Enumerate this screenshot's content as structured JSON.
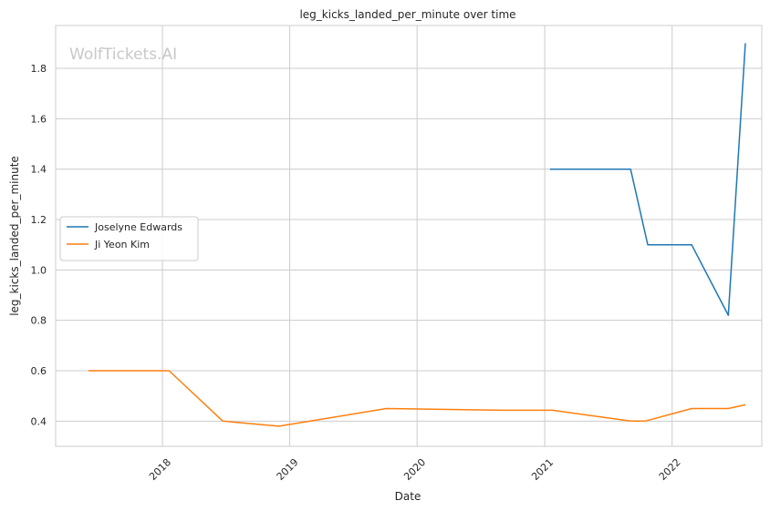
{
  "chart_data": {
    "type": "line",
    "title": "leg_kicks_landed_per_minute over time",
    "xlabel": "Date",
    "ylabel": "leg_kicks_landed_per_minute",
    "watermark": "WolfTickets.AI",
    "x_ticks": [
      "2018",
      "2019",
      "2020",
      "2021",
      "2022"
    ],
    "y_ticks": [
      "0.4",
      "0.6",
      "0.8",
      "1.0",
      "1.2",
      "1.4",
      "1.6",
      "1.8"
    ],
    "xlim": [
      "2017-03-01",
      "2022-09-15"
    ],
    "ylim": [
      0.3,
      1.97
    ],
    "grid": true,
    "legend_position": "center-left",
    "series": [
      {
        "name": "Joselyne Edwards",
        "color": "#1f77b4",
        "points": [
          {
            "x": "2021-01-16",
            "y": 1.4
          },
          {
            "x": "2021-09-04",
            "y": 1.4
          },
          {
            "x": "2021-10-23",
            "y": 1.1
          },
          {
            "x": "2022-02-26",
            "y": 1.1
          },
          {
            "x": "2022-06-11",
            "y": 0.82
          },
          {
            "x": "2022-07-30",
            "y": 1.9
          }
        ]
      },
      {
        "name": "Ji Yeon Kim",
        "color": "#ff7f0e",
        "points": [
          {
            "x": "2017-06-03",
            "y": 0.6
          },
          {
            "x": "2018-01-20",
            "y": 0.6
          },
          {
            "x": "2018-06-23",
            "y": 0.4
          },
          {
            "x": "2018-12-01",
            "y": 0.38
          },
          {
            "x": "2019-10-05",
            "y": 0.45
          },
          {
            "x": "2020-09-05",
            "y": 0.443
          },
          {
            "x": "2021-01-23",
            "y": 0.443
          },
          {
            "x": "2021-09-04",
            "y": 0.4
          },
          {
            "x": "2021-10-16",
            "y": 0.4
          },
          {
            "x": "2022-02-26",
            "y": 0.45
          },
          {
            "x": "2022-06-11",
            "y": 0.45
          },
          {
            "x": "2022-07-30",
            "y": 0.465
          }
        ]
      }
    ]
  }
}
